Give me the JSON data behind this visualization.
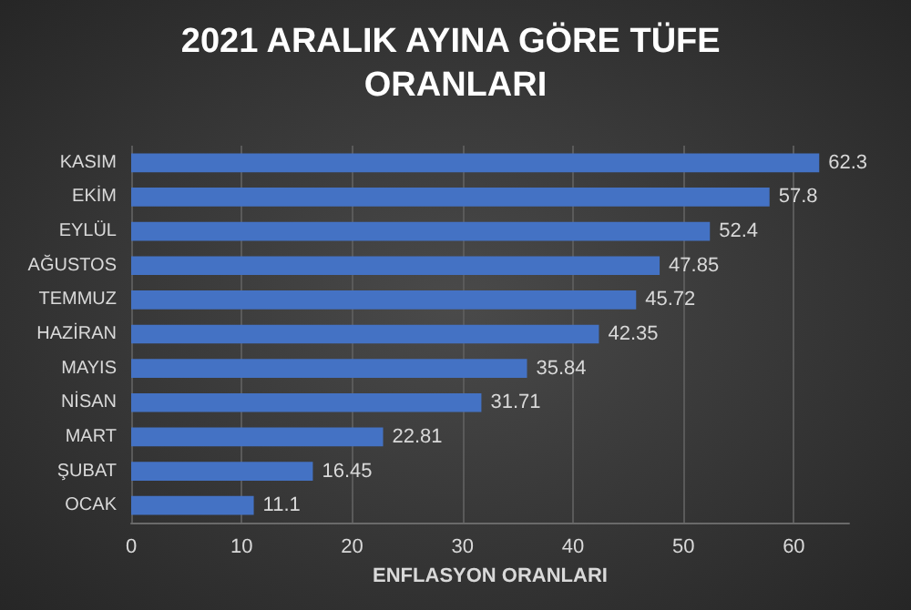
{
  "chart_data": {
    "type": "bar",
    "orientation": "horizontal",
    "title": "2021 ARALIK AYINA GÖRE TÜFE ORANLARI",
    "xlabel": "ENFLASYON ORANLARI",
    "categories": [
      "KASIM",
      "EKİM",
      "EYLÜL",
      "AĞUSTOS",
      "TEMMUZ",
      "HAZİRAN",
      "MAYIS",
      "NİSAN",
      "MART",
      "ŞUBAT",
      "OCAK"
    ],
    "values": [
      62.3,
      57.8,
      52.4,
      47.85,
      45.72,
      42.35,
      35.84,
      31.71,
      22.81,
      16.45,
      11.1
    ],
    "color": "#4472c4",
    "xlim": [
      0,
      65
    ],
    "xticks": [
      0,
      10,
      20,
      30,
      40,
      50,
      60
    ],
    "grid": "x",
    "data_labels": true
  }
}
